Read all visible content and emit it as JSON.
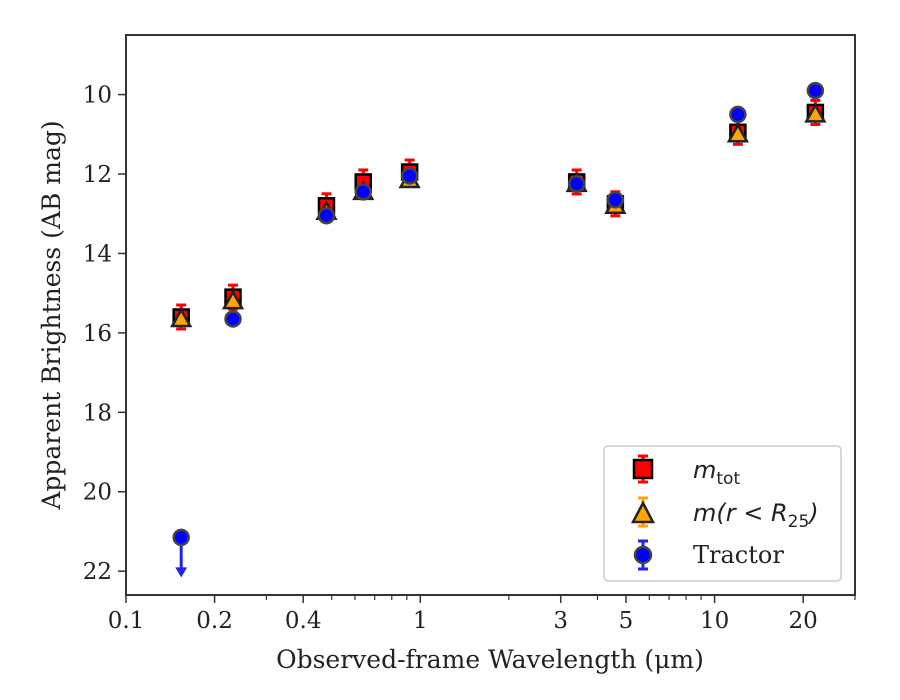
{
  "chart_data": {
    "type": "scatter",
    "title": "",
    "xlabel": "Observed-frame Wavelength (μm)",
    "ylabel": "Apparent Brightness (AB mag)",
    "xscale": "log",
    "xlim": [
      0.1,
      30
    ],
    "ylim": [
      22.6,
      8.5
    ],
    "y_inverted": true,
    "x_ticks": [
      0.1,
      0.2,
      0.4,
      1,
      3,
      5,
      10,
      20
    ],
    "x_tick_labels": [
      "0.1",
      "0.2",
      "0.4",
      "1",
      "3",
      "5",
      "10",
      "20"
    ],
    "y_ticks": [
      10,
      12,
      14,
      16,
      18,
      20,
      22
    ],
    "y_tick_labels": [
      "10",
      "12",
      "14",
      "16",
      "18",
      "20",
      "22"
    ],
    "legend_position": "bottom-right",
    "series": [
      {
        "name": "m_tot",
        "marker": "square",
        "color": "#ff0000",
        "edge_color": "#000000",
        "points": [
          {
            "x": 0.154,
            "y": 15.6
          },
          {
            "x": 0.231,
            "y": 15.1
          },
          {
            "x": 0.48,
            "y": 12.8
          },
          {
            "x": 0.64,
            "y": 12.2
          },
          {
            "x": 0.92,
            "y": 11.95
          },
          {
            "x": 3.4,
            "y": 12.2
          },
          {
            "x": 4.6,
            "y": 12.75
          },
          {
            "x": 12.0,
            "y": 10.95
          },
          {
            "x": 22.0,
            "y": 10.45
          }
        ]
      },
      {
        "name": "m(r<R25)",
        "marker": "triangle",
        "color": "#ffa500",
        "edge_color": "#000000",
        "points": [
          {
            "x": 0.154,
            "y": 15.65
          },
          {
            "x": 0.231,
            "y": 15.2
          },
          {
            "x": 0.48,
            "y": 12.95
          },
          {
            "x": 0.64,
            "y": 12.45
          },
          {
            "x": 0.92,
            "y": 12.15
          },
          {
            "x": 3.4,
            "y": 12.25
          },
          {
            "x": 4.6,
            "y": 12.8
          },
          {
            "x": 12.0,
            "y": 11.0
          },
          {
            "x": 22.0,
            "y": 10.5
          }
        ]
      },
      {
        "name": "Tractor",
        "marker": "circle",
        "color": "#0000ff",
        "edge_color": "#444444",
        "points": [
          {
            "x": 0.154,
            "y": 21.15,
            "upper_limit": true
          },
          {
            "x": 0.231,
            "y": 15.65
          },
          {
            "x": 0.48,
            "y": 13.05
          },
          {
            "x": 0.64,
            "y": 12.45
          },
          {
            "x": 0.92,
            "y": 12.05
          },
          {
            "x": 3.4,
            "y": 12.25
          },
          {
            "x": 4.6,
            "y": 12.65
          },
          {
            "x": 12.0,
            "y": 10.5
          },
          {
            "x": 22.0,
            "y": 9.9
          }
        ]
      }
    ]
  },
  "legend": {
    "m_tot_base": "m",
    "m_tot_sub": "tot",
    "m_r25_prefix": "m(r < R",
    "m_r25_sub": "25",
    "m_r25_suffix": ")",
    "tractor": "Tractor"
  }
}
